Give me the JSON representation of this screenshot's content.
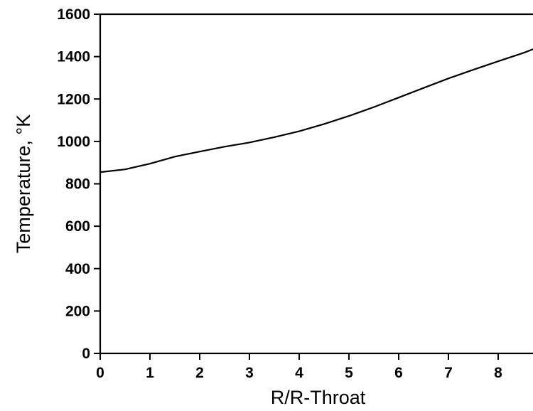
{
  "chart_data": {
    "type": "line",
    "title": "",
    "xlabel": "R/R-Throat",
    "ylabel": "Temperature, °K",
    "xlim": [
      0,
      8.7
    ],
    "ylim": [
      0,
      1600
    ],
    "xticks": [
      0,
      1,
      2,
      3,
      4,
      5,
      6,
      7,
      8
    ],
    "yticks": [
      0,
      200,
      400,
      600,
      800,
      1000,
      1200,
      1400,
      1600
    ],
    "grid": false,
    "legend": "none",
    "colors": {
      "line": "#000000",
      "axis": "#000000"
    },
    "series": [
      {
        "x": [
          0,
          0.5,
          1,
          1.5,
          2,
          2.5,
          3,
          3.5,
          4,
          4.5,
          5,
          5.5,
          6,
          6.5,
          7,
          7.5,
          8,
          8.5,
          8.7
        ],
        "y": [
          855,
          868,
          895,
          928,
          952,
          975,
          995,
          1020,
          1048,
          1082,
          1120,
          1162,
          1207,
          1252,
          1297,
          1338,
          1378,
          1417,
          1435
        ]
      }
    ]
  }
}
